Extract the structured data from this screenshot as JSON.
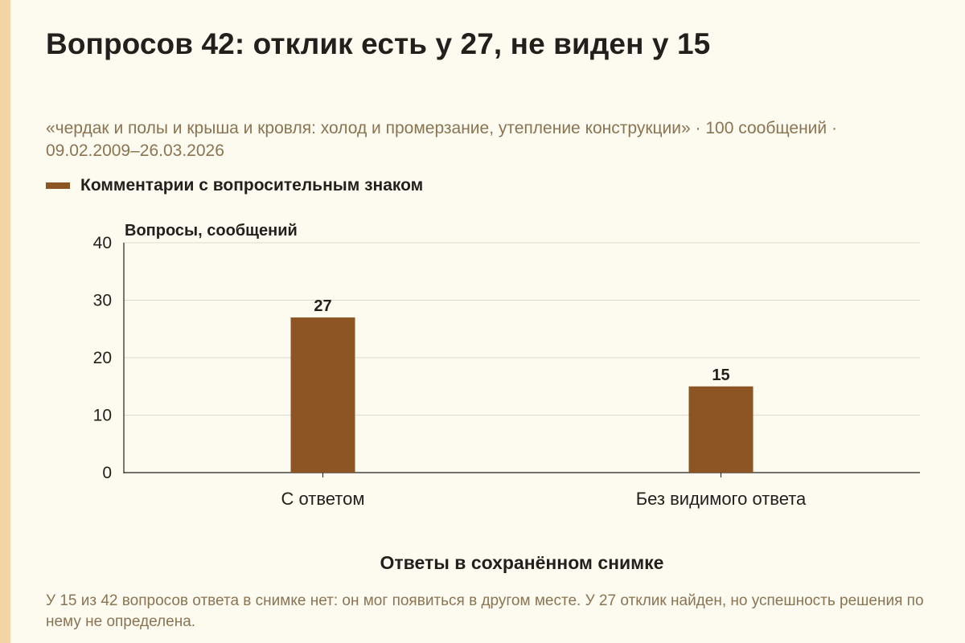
{
  "header": {
    "title": "Вопросов 42: отклик есть у 27, не виден у 15",
    "subtitle": "«чердак и полы и крыша и кровля: холод и промерзание, утепление конструкции» · 100 сообщений · 09.02.2009–26.03.2026"
  },
  "legend": {
    "label": "Комментарии с вопросительным знаком",
    "color": "#8d5524"
  },
  "footnote": "У 15 из 42 вопросов ответа в снимке нет: он мог появиться в другом месте. У 27 отклик найден, но успешность решения по нему не определена.",
  "chart_data": {
    "type": "bar",
    "categories": [
      "С ответом",
      "Без видимого ответа"
    ],
    "series": [
      {
        "name": "Комментарии с вопросительным знаком",
        "values": [
          27,
          15
        ],
        "color": "#8d5524"
      }
    ],
    "data_labels": [
      "27",
      "15"
    ],
    "ylabel": "Вопросы, сообщений",
    "xlabel": "Ответы в сохранённом снимке",
    "ylim": [
      0,
      40
    ],
    "yticks": [
      0,
      10,
      20,
      30,
      40
    ],
    "grid": true,
    "legend_position": "top-left"
  }
}
